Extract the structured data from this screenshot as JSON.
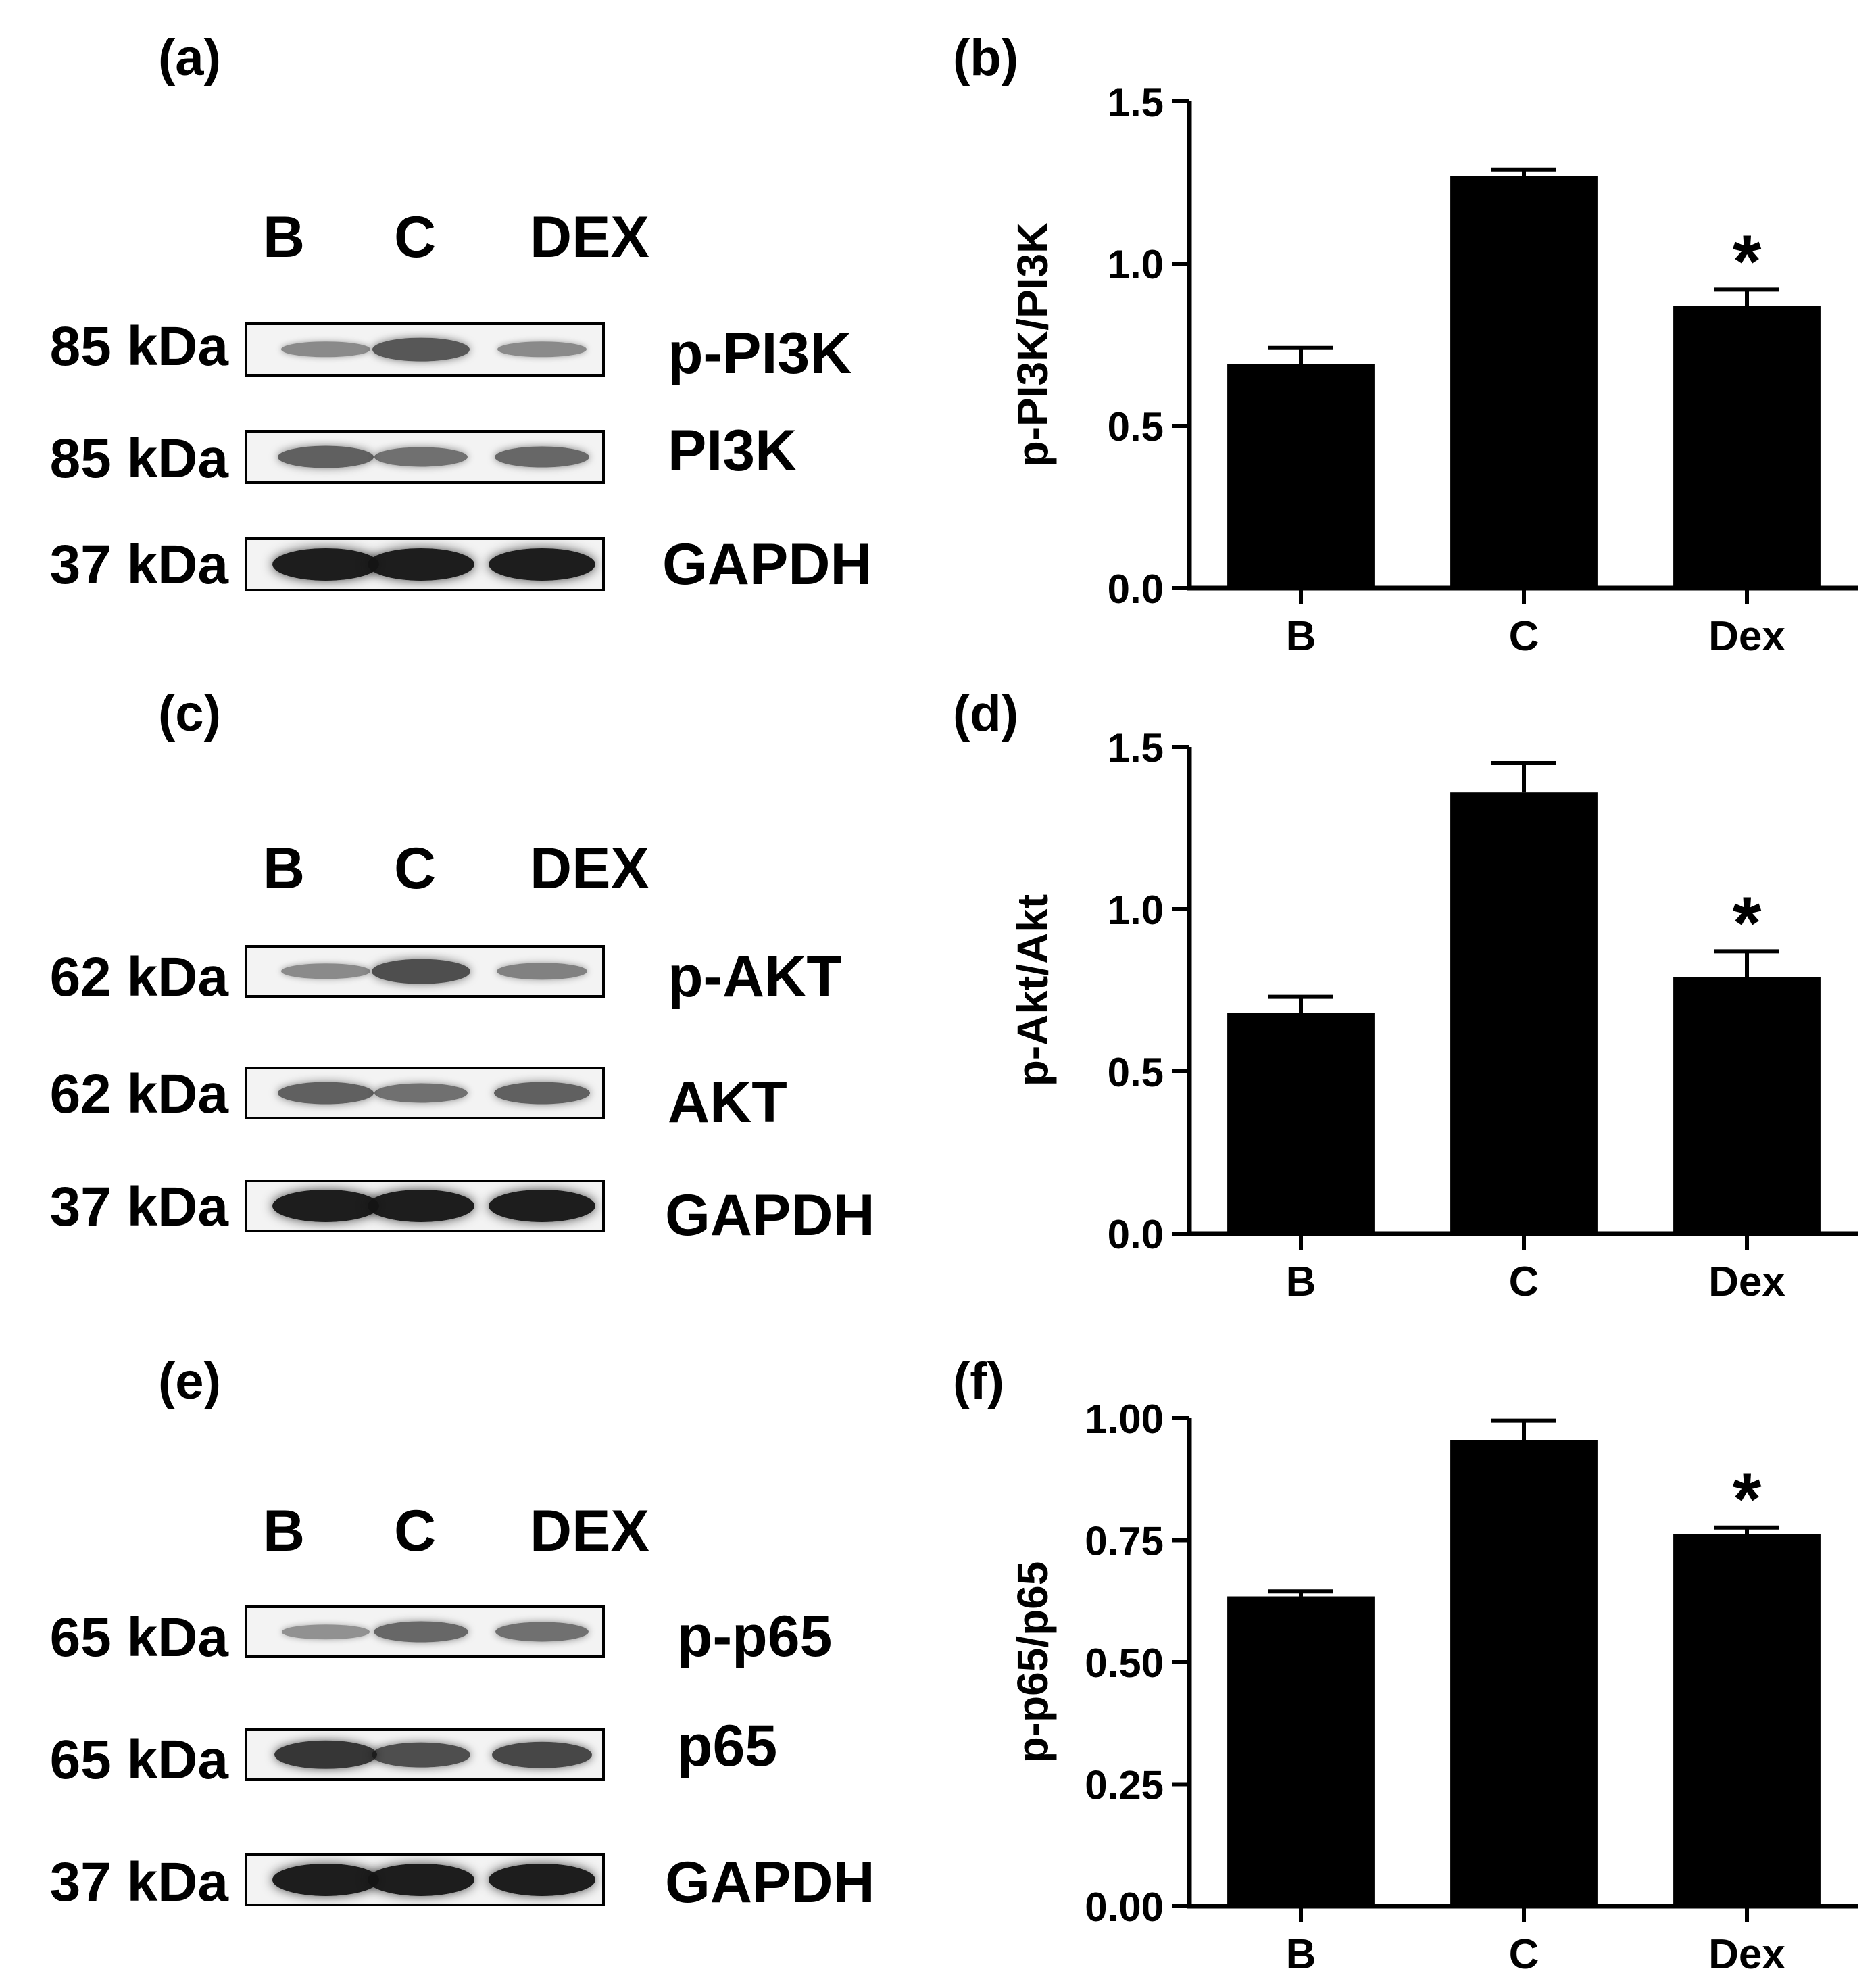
{
  "colors": {
    "bar": "#000000",
    "axis": "#000000",
    "background": "#ffffff",
    "blot_background": "#f3f3f3",
    "band": "#1a1a1a"
  },
  "panels": {
    "a": {
      "letter": "(a)",
      "lanes": [
        "B",
        "C",
        "DEX"
      ],
      "rows": [
        {
          "kda": "85 kDa",
          "protein": "p-PI3K",
          "intensity": [
            0.3,
            0.6,
            0.3
          ]
        },
        {
          "kda": "85 kDa",
          "protein": "PI3K",
          "intensity": [
            0.55,
            0.45,
            0.5
          ]
        },
        {
          "kda": "37 kDa",
          "protein": "GAPDH",
          "intensity": [
            0.95,
            0.95,
            0.95
          ]
        }
      ]
    },
    "b": {
      "letter": "(b)"
    },
    "c": {
      "letter": "(c)",
      "lanes": [
        "B",
        "C",
        "DEX"
      ],
      "rows": [
        {
          "kda": "62 kDa",
          "protein": "p-AKT",
          "intensity": [
            0.3,
            0.65,
            0.35
          ]
        },
        {
          "kda": "62 kDa",
          "protein": "AKT",
          "intensity": [
            0.55,
            0.45,
            0.55
          ]
        },
        {
          "kda": "37 kDa",
          "protein": "GAPDH",
          "intensity": [
            0.95,
            0.95,
            0.95
          ]
        }
      ]
    },
    "d": {
      "letter": "(d)"
    },
    "e": {
      "letter": "(e)",
      "lanes": [
        "B",
        "C",
        "DEX"
      ],
      "rows": [
        {
          "kda": "65 kDa",
          "protein": "p-p65",
          "intensity": [
            0.25,
            0.5,
            0.45
          ]
        },
        {
          "kda": "65 kDa",
          "protein": "p65",
          "intensity": [
            0.8,
            0.65,
            0.7
          ]
        },
        {
          "kda": "37 kDa",
          "protein": "GAPDH",
          "intensity": [
            0.95,
            0.95,
            0.95
          ]
        }
      ]
    },
    "f": {
      "letter": "(f)"
    }
  },
  "chart_data": [
    {
      "type": "bar",
      "panel": "b",
      "categories": [
        "B",
        "C",
        "Dex"
      ],
      "values": [
        0.69,
        1.27,
        0.87
      ],
      "errors": [
        0.05,
        0.02,
        0.05
      ],
      "significance": [
        "",
        "",
        "*"
      ],
      "ylabel": "p-PI3K/PI3K",
      "ylim": [
        0,
        1.5
      ],
      "yticks": [
        0,
        0.5,
        1.0,
        1.5
      ],
      "ytick_labels": [
        "0.0",
        "0.5",
        "1.0",
        "1.5"
      ]
    },
    {
      "type": "bar",
      "panel": "d",
      "categories": [
        "B",
        "C",
        "Dex"
      ],
      "values": [
        0.68,
        1.36,
        0.79
      ],
      "errors": [
        0.05,
        0.09,
        0.08
      ],
      "significance": [
        "",
        "",
        "*"
      ],
      "ylabel": "p-Akt/Akt",
      "ylim": [
        0,
        1.5
      ],
      "yticks": [
        0,
        0.5,
        1.0,
        1.5
      ],
      "ytick_labels": [
        "0.0",
        "0.5",
        "1.0",
        "1.5"
      ]
    },
    {
      "type": "bar",
      "panel": "f",
      "categories": [
        "B",
        "C",
        "Dex"
      ],
      "values": [
        0.635,
        0.955,
        0.763
      ],
      "errors": [
        0.01,
        0.04,
        0.013
      ],
      "significance": [
        "",
        "",
        "*"
      ],
      "ylabel": "p-p65/p65",
      "ylim": [
        0,
        1.0
      ],
      "yticks": [
        0,
        0.25,
        0.5,
        0.75,
        1.0
      ],
      "ytick_labels": [
        "0.00",
        "0.25",
        "0.50",
        "0.75",
        "1.00"
      ]
    }
  ]
}
